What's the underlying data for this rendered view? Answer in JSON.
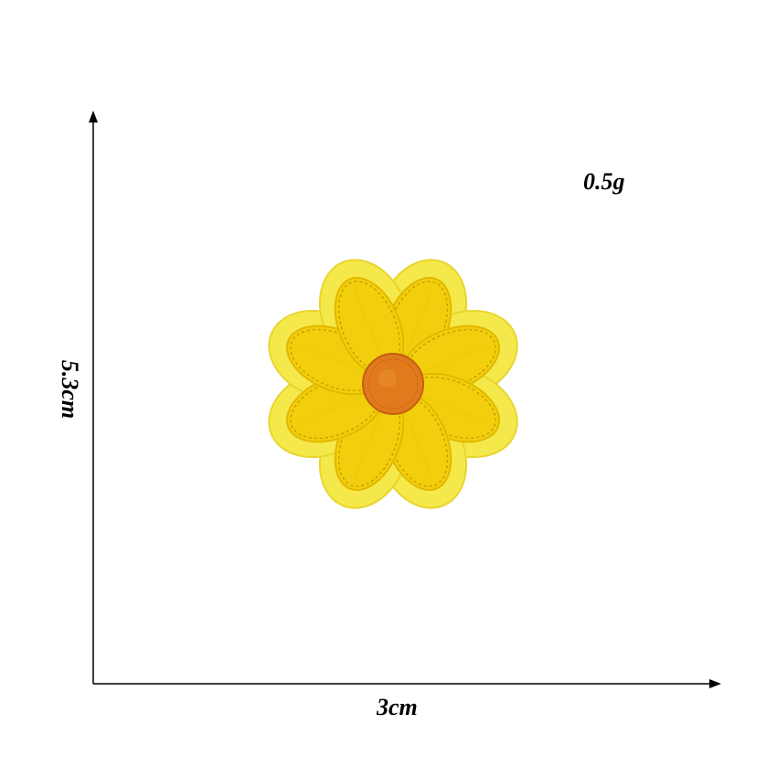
{
  "dimensions": {
    "height_label": "5.3cm",
    "width_label": "3cm",
    "weight_label": "0.5g"
  },
  "product": {
    "icon": "flower-patch-icon",
    "petal_count": 8,
    "colors": {
      "backing": "#f5e84a",
      "backing_edge": "#e8d52e",
      "petal": "#f2cf0c",
      "petal_shade": "#e2b800",
      "stitch": "#c99a00",
      "center": "#e07a1c",
      "center_shade": "#c45d10"
    }
  }
}
